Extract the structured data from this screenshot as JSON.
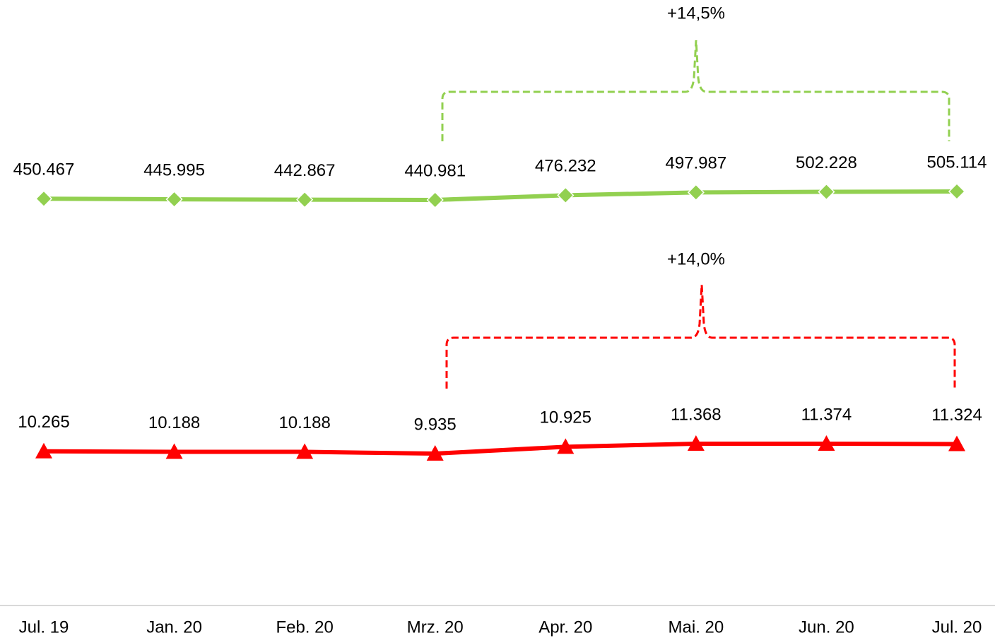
{
  "chart_data": {
    "type": "line",
    "categories": [
      "Jul. 19",
      "Jan. 20",
      "Feb. 20",
      "Mrz. 20",
      "Apr. 20",
      "Mai. 20",
      "Jun. 20",
      "Jul. 20"
    ],
    "series": [
      {
        "color": "#92d050",
        "marker": "diamond",
        "values": [
          450467,
          445995,
          442867,
          440981,
          476232,
          497987,
          502228,
          505114
        ],
        "value_labels": [
          "450.467",
          "445.995",
          "442.867",
          "440.981",
          "476.232",
          "497.987",
          "502.228",
          "505.114"
        ]
      },
      {
        "color": "#ff0000",
        "marker": "triangle",
        "values": [
          10265,
          10188,
          10188,
          9935,
          10925,
          11368,
          11374,
          11324
        ],
        "value_labels": [
          "10.265",
          "10.188",
          "10.188",
          "9.935",
          "10.925",
          "11.368",
          "11.374",
          "11.324"
        ]
      }
    ],
    "annotations": [
      "+14,5%",
      "+14,0%"
    ]
  }
}
